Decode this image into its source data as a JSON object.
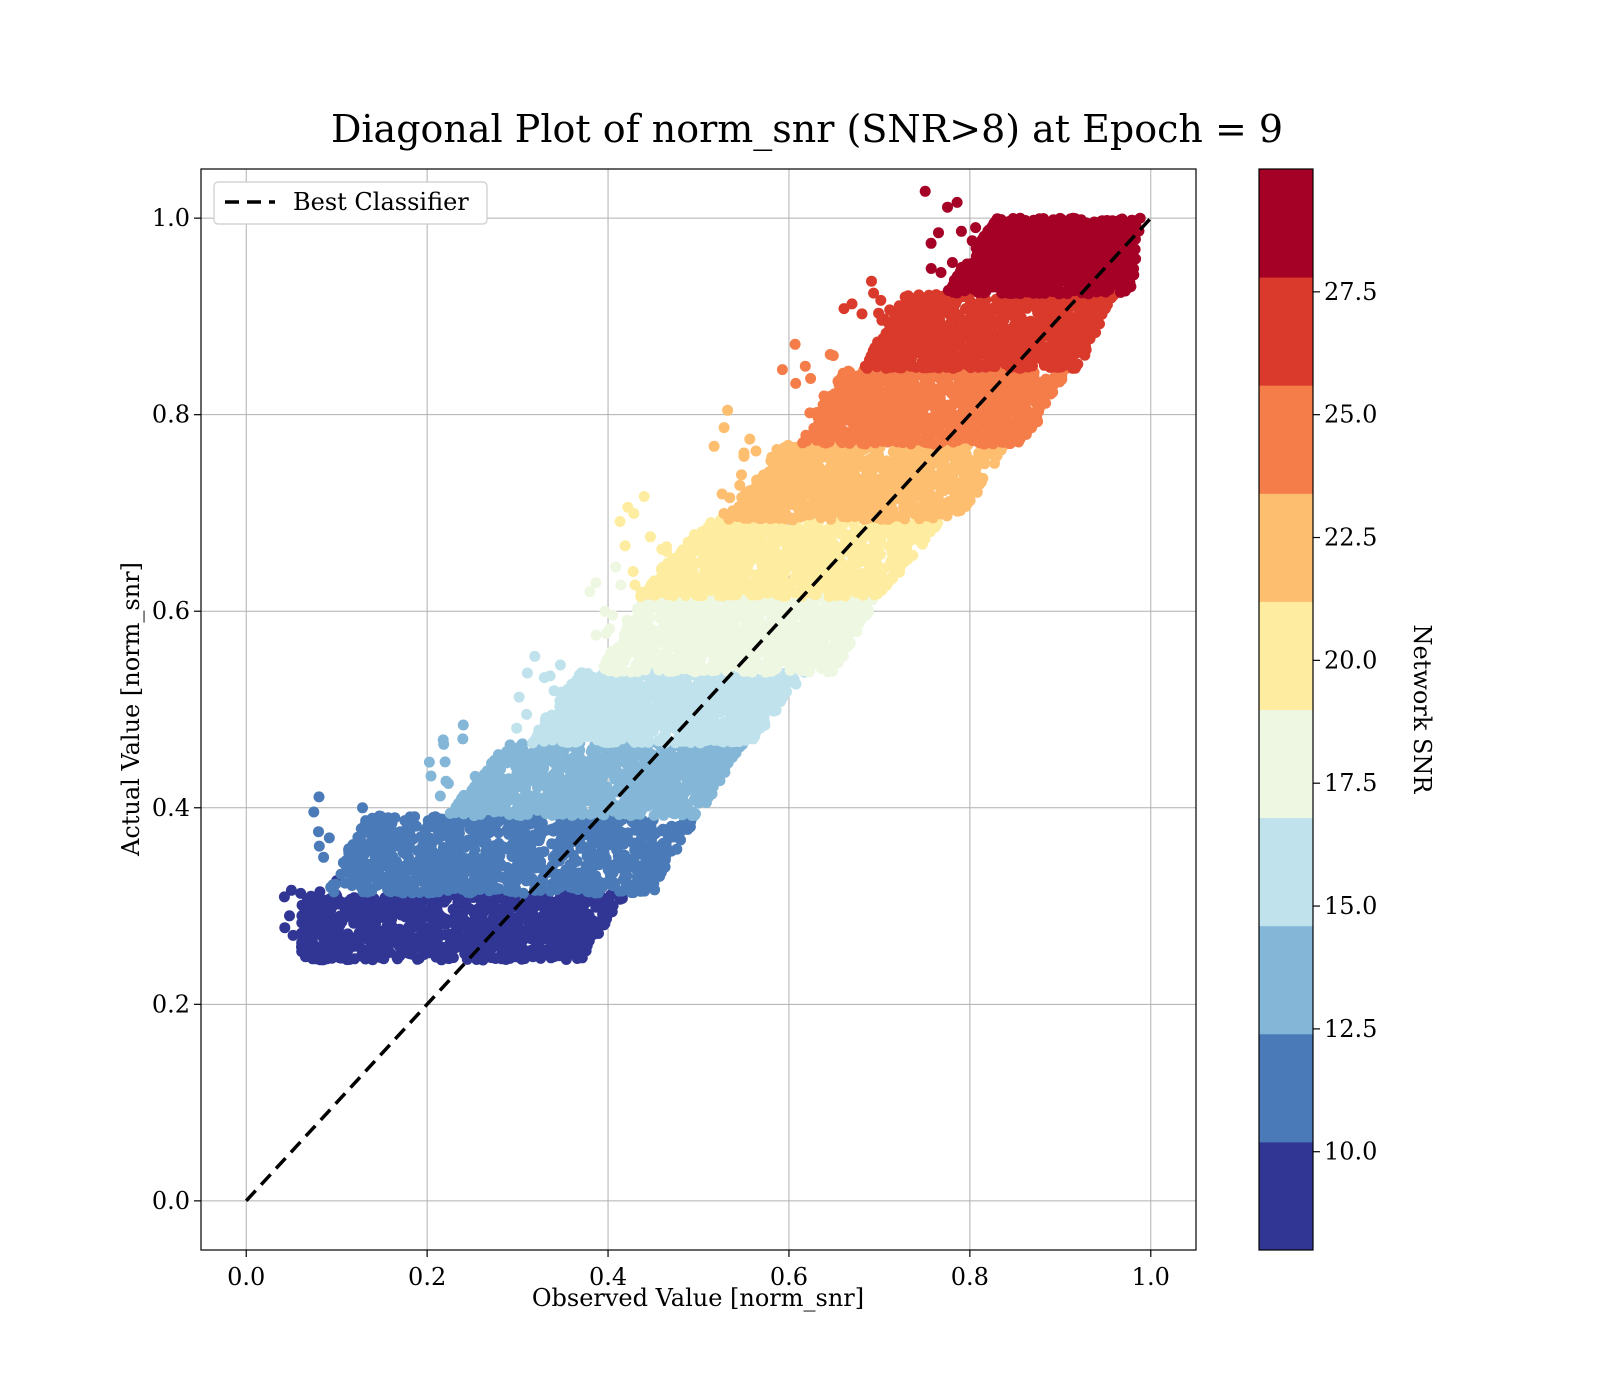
{
  "chart_data": {
    "type": "scatter",
    "title": "Diagonal Plot of norm_snr (SNR>8) at Epoch = 9",
    "xlabel": "Observed Value [norm_snr]",
    "ylabel": "Actual Value [norm_snr]",
    "xlim": [
      -0.05,
      1.05
    ],
    "ylim": [
      -0.05,
      1.05
    ],
    "xticks": [
      "0.0",
      "0.2",
      "0.4",
      "0.6",
      "0.8",
      "1.0"
    ],
    "yticks": [
      "0.0",
      "0.2",
      "0.4",
      "0.6",
      "0.8",
      "1.0"
    ],
    "grid": true,
    "legend": {
      "placement": "upper-left",
      "entries": [
        "Best Classifier"
      ]
    },
    "reference_line": {
      "name": "Best Classifier",
      "style": "dashed",
      "color": "#000000",
      "x": [
        0.0,
        1.0
      ],
      "y": [
        0.0,
        1.0
      ]
    },
    "colorbar": {
      "label": "Network SNR",
      "range": [
        8,
        30
      ],
      "ticks": [
        "10.0",
        "12.5",
        "15.0",
        "17.5",
        "20.0",
        "22.5",
        "25.0",
        "27.5"
      ],
      "tick_values": [
        10.0,
        12.5,
        15.0,
        17.5,
        20.0,
        22.5,
        25.0,
        27.5
      ],
      "bins": [
        {
          "snr_min": 8.0,
          "snr_max": 10.2,
          "color": "#313695"
        },
        {
          "snr_min": 10.2,
          "snr_max": 12.4,
          "color": "#4a7ab7"
        },
        {
          "snr_min": 12.4,
          "snr_max": 14.6,
          "color": "#84b7d7"
        },
        {
          "snr_min": 14.6,
          "snr_max": 16.8,
          "color": "#bfe2ec"
        },
        {
          "snr_min": 16.8,
          "snr_max": 19.0,
          "color": "#eef7e2"
        },
        {
          "snr_min": 19.0,
          "snr_max": 21.2,
          "color": "#feeda1"
        },
        {
          "snr_min": 21.2,
          "snr_max": 23.4,
          "color": "#fdbe70"
        },
        {
          "snr_min": 23.4,
          "snr_max": 25.6,
          "color": "#f47d4a"
        },
        {
          "snr_min": 25.6,
          "snr_max": 27.8,
          "color": "#d93a2b"
        },
        {
          "snr_min": 27.8,
          "snr_max": 30.0,
          "color": "#a50026"
        }
      ]
    },
    "scatter_bands": [
      {
        "y_range": [
          0.245,
          0.313
        ],
        "x_min_at_bottom": 0.06,
        "x_max_at_bottom": 0.37,
        "x_min_at_top": 0.06,
        "x_max_at_top": 0.42,
        "color": "#313695"
      },
      {
        "y_range": [
          0.313,
          0.392
        ],
        "x_min_at_bottom": 0.09,
        "x_max_at_bottom": 0.45,
        "x_min_at_top": 0.13,
        "x_max_at_top": 0.5,
        "color": "#4a7ab7"
      },
      {
        "y_range": [
          0.392,
          0.466
        ],
        "x_min_at_bottom": 0.22,
        "x_max_at_bottom": 0.5,
        "x_min_at_top": 0.29,
        "x_max_at_top": 0.55,
        "color": "#84b7d7"
      },
      {
        "y_range": [
          0.466,
          0.538
        ],
        "x_min_at_bottom": 0.31,
        "x_max_at_bottom": 0.56,
        "x_min_at_top": 0.37,
        "x_max_at_top": 0.62,
        "color": "#bfe2ec"
      },
      {
        "y_range": [
          0.538,
          0.615
        ],
        "x_min_at_bottom": 0.39,
        "x_max_at_bottom": 0.65,
        "x_min_at_top": 0.44,
        "x_max_at_top": 0.7,
        "color": "#eef7e2"
      },
      {
        "y_range": [
          0.615,
          0.693
        ],
        "x_min_at_bottom": 0.43,
        "x_max_at_bottom": 0.7,
        "x_min_at_top": 0.51,
        "x_max_at_top": 0.77,
        "color": "#feeda1"
      },
      {
        "y_range": [
          0.693,
          0.77
        ],
        "x_min_at_bottom": 0.53,
        "x_max_at_bottom": 0.79,
        "x_min_at_top": 0.59,
        "x_max_at_top": 0.84,
        "color": "#fdbe70"
      },
      {
        "y_range": [
          0.77,
          0.847
        ],
        "x_min_at_bottom": 0.61,
        "x_max_at_bottom": 0.86,
        "x_min_at_top": 0.66,
        "x_max_at_top": 0.91,
        "color": "#f47d4a"
      },
      {
        "y_range": [
          0.847,
          0.923
        ],
        "x_min_at_bottom": 0.68,
        "x_max_at_bottom": 0.92,
        "x_min_at_top": 0.73,
        "x_max_at_top": 0.96,
        "color": "#d93a2b"
      },
      {
        "y_range": [
          0.923,
          1.0
        ],
        "x_min_at_bottom": 0.77,
        "x_max_at_bottom": 0.98,
        "x_min_at_top": 0.83,
        "x_max_at_top": 0.99,
        "color": "#a50026"
      }
    ]
  }
}
